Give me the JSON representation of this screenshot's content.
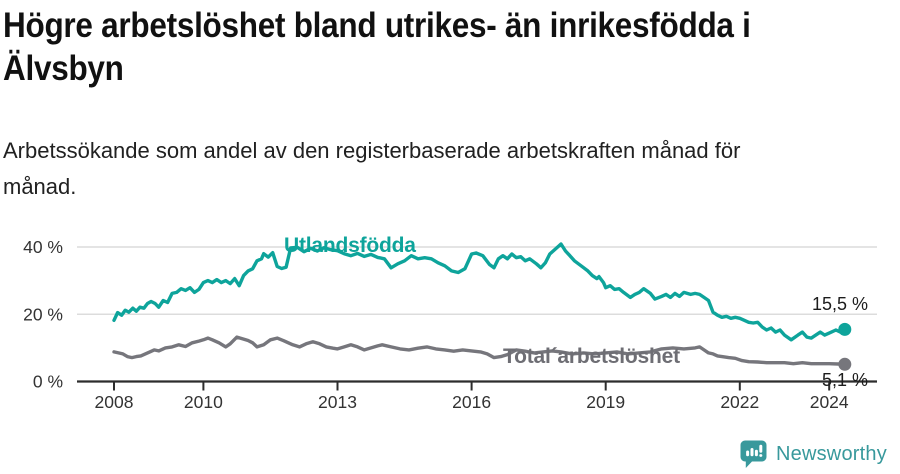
{
  "header": {
    "title_lines": [
      "Högre arbetslöshet bland utrikes- än inrikesfödda i",
      "Älvsbyn"
    ],
    "subtitle_lines": [
      "Arbetssökande som andel av den registerbaserade arbetskraften månad för",
      "månad."
    ]
  },
  "footer": {
    "brand": "Newsworthy",
    "brand_color": "#38999c",
    "logo_icon": "bar-chart-speech-bubble-icon"
  },
  "colors": {
    "utlandsfodda": "#0ea49b",
    "total": "#76767c",
    "gridline": "#dcdcdc",
    "axis": "#2d2d2d",
    "axis_text": "#333333",
    "annotation_text": "#1c1c1c"
  },
  "chart_data": {
    "type": "line",
    "title": "Högre arbetslöshet bland utrikes- än inrikesfödda i Älvsbyn",
    "subtitle": "Arbetssökande som andel av den registerbaserade arbetskraften månad för månad.",
    "xlabel": "",
    "ylabel": "",
    "x_axis": {
      "ticks": [
        2008,
        2010,
        2013,
        2016,
        2019,
        2022,
        2024
      ],
      "range": [
        2007.2,
        2025.1
      ]
    },
    "y_axis": {
      "ticks": [
        0,
        20,
        40
      ],
      "tick_suffix": " %",
      "range": [
        0,
        44
      ]
    },
    "grid": "horizontal",
    "legend_position": "inline-labels",
    "series": [
      {
        "key": "utlandsfodda",
        "name": "Utlandsfödda",
        "color": "#0ea49b",
        "end_value": 15.5,
        "end_label": "15,5 %",
        "points": [
          [
            2008.0,
            18.2
          ],
          [
            2008.08,
            20.5
          ],
          [
            2008.17,
            19.7
          ],
          [
            2008.25,
            21.2
          ],
          [
            2008.33,
            20.6
          ],
          [
            2008.42,
            21.8
          ],
          [
            2008.5,
            20.9
          ],
          [
            2008.58,
            22.1
          ],
          [
            2008.67,
            21.8
          ],
          [
            2008.75,
            23.2
          ],
          [
            2008.83,
            23.8
          ],
          [
            2008.92,
            23.2
          ],
          [
            2009.0,
            22.1
          ],
          [
            2009.1,
            24.1
          ],
          [
            2009.2,
            23.5
          ],
          [
            2009.3,
            26.2
          ],
          [
            2009.4,
            26.5
          ],
          [
            2009.5,
            27.6
          ],
          [
            2009.6,
            27.1
          ],
          [
            2009.7,
            27.9
          ],
          [
            2009.8,
            26.5
          ],
          [
            2009.9,
            27.4
          ],
          [
            2010.0,
            29.4
          ],
          [
            2010.1,
            30.0
          ],
          [
            2010.2,
            29.4
          ],
          [
            2010.3,
            30.3
          ],
          [
            2010.4,
            29.4
          ],
          [
            2010.5,
            30.0
          ],
          [
            2010.6,
            29.1
          ],
          [
            2010.7,
            30.6
          ],
          [
            2010.8,
            28.5
          ],
          [
            2010.9,
            31.5
          ],
          [
            2011.0,
            32.9
          ],
          [
            2011.1,
            33.5
          ],
          [
            2011.2,
            35.9
          ],
          [
            2011.3,
            36.5
          ],
          [
            2011.35,
            38.0
          ],
          [
            2011.45,
            37.0
          ],
          [
            2011.55,
            38.3
          ],
          [
            2011.65,
            34.2
          ],
          [
            2011.75,
            33.6
          ],
          [
            2011.85,
            34.0
          ],
          [
            2011.95,
            39.7
          ],
          [
            2012.1,
            39.9
          ],
          [
            2012.25,
            38.6
          ],
          [
            2012.4,
            39.6
          ],
          [
            2012.55,
            38.8
          ],
          [
            2012.7,
            39.8
          ],
          [
            2012.85,
            39.2
          ],
          [
            2013.0,
            38.9
          ],
          [
            2013.15,
            38.0
          ],
          [
            2013.3,
            37.4
          ],
          [
            2013.45,
            38.1
          ],
          [
            2013.6,
            37.2
          ],
          [
            2013.75,
            37.8
          ],
          [
            2013.9,
            36.9
          ],
          [
            2014.05,
            36.5
          ],
          [
            2014.2,
            33.8
          ],
          [
            2014.35,
            35.0
          ],
          [
            2014.5,
            35.9
          ],
          [
            2014.65,
            37.4
          ],
          [
            2014.8,
            36.5
          ],
          [
            2014.95,
            36.8
          ],
          [
            2015.1,
            36.5
          ],
          [
            2015.25,
            35.3
          ],
          [
            2015.4,
            34.4
          ],
          [
            2015.55,
            32.9
          ],
          [
            2015.7,
            32.4
          ],
          [
            2015.85,
            33.5
          ],
          [
            2016.0,
            37.9
          ],
          [
            2016.1,
            38.2
          ],
          [
            2016.25,
            37.4
          ],
          [
            2016.4,
            34.8
          ],
          [
            2016.5,
            33.8
          ],
          [
            2016.6,
            36.5
          ],
          [
            2016.7,
            37.4
          ],
          [
            2016.8,
            36.5
          ],
          [
            2016.9,
            37.9
          ],
          [
            2017.0,
            36.8
          ],
          [
            2017.1,
            37.1
          ],
          [
            2017.2,
            35.9
          ],
          [
            2017.3,
            36.5
          ],
          [
            2017.45,
            35.0
          ],
          [
            2017.55,
            33.8
          ],
          [
            2017.65,
            35.3
          ],
          [
            2017.75,
            37.9
          ],
          [
            2017.85,
            39.1
          ],
          [
            2017.95,
            40.3
          ],
          [
            2018.0,
            40.9
          ],
          [
            2018.1,
            38.8
          ],
          [
            2018.2,
            37.4
          ],
          [
            2018.3,
            35.9
          ],
          [
            2018.45,
            34.4
          ],
          [
            2018.6,
            32.9
          ],
          [
            2018.7,
            31.5
          ],
          [
            2018.8,
            30.6
          ],
          [
            2018.85,
            31.2
          ],
          [
            2018.95,
            29.4
          ],
          [
            2019.0,
            27.9
          ],
          [
            2019.1,
            28.5
          ],
          [
            2019.2,
            27.4
          ],
          [
            2019.3,
            27.6
          ],
          [
            2019.4,
            26.5
          ],
          [
            2019.55,
            25.0
          ],
          [
            2019.65,
            25.9
          ],
          [
            2019.75,
            26.5
          ],
          [
            2019.85,
            27.6
          ],
          [
            2020.0,
            26.2
          ],
          [
            2020.1,
            24.5
          ],
          [
            2020.25,
            25.3
          ],
          [
            2020.35,
            25.9
          ],
          [
            2020.45,
            25.0
          ],
          [
            2020.55,
            26.2
          ],
          [
            2020.65,
            25.3
          ],
          [
            2020.75,
            26.5
          ],
          [
            2020.9,
            25.9
          ],
          [
            2021.0,
            26.2
          ],
          [
            2021.1,
            25.9
          ],
          [
            2021.2,
            25.0
          ],
          [
            2021.3,
            24.1
          ],
          [
            2021.4,
            20.6
          ],
          [
            2021.5,
            19.7
          ],
          [
            2021.6,
            19.1
          ],
          [
            2021.7,
            19.4
          ],
          [
            2021.8,
            18.8
          ],
          [
            2021.9,
            19.1
          ],
          [
            2022.0,
            18.8
          ],
          [
            2022.1,
            18.2
          ],
          [
            2022.2,
            17.6
          ],
          [
            2022.3,
            17.4
          ],
          [
            2022.4,
            17.6
          ],
          [
            2022.5,
            16.2
          ],
          [
            2022.6,
            15.3
          ],
          [
            2022.7,
            15.9
          ],
          [
            2022.8,
            14.7
          ],
          [
            2022.9,
            15.3
          ],
          [
            2023.0,
            13.8
          ],
          [
            2023.15,
            12.4
          ],
          [
            2023.3,
            13.8
          ],
          [
            2023.4,
            14.7
          ],
          [
            2023.5,
            13.2
          ],
          [
            2023.6,
            12.9
          ],
          [
            2023.7,
            13.8
          ],
          [
            2023.8,
            14.7
          ],
          [
            2023.9,
            13.8
          ],
          [
            2024.0,
            14.4
          ],
          [
            2024.15,
            15.3
          ],
          [
            2024.25,
            14.7
          ],
          [
            2024.35,
            15.5
          ]
        ]
      },
      {
        "key": "total-arbetsloshet",
        "name": "Total´arbetslöshet",
        "color": "#76767c",
        "end_value": 5.1,
        "end_label": "5,1 %",
        "points": [
          [
            2008.0,
            8.8
          ],
          [
            2008.1,
            8.5
          ],
          [
            2008.2,
            8.2
          ],
          [
            2008.3,
            7.4
          ],
          [
            2008.4,
            7.1
          ],
          [
            2008.5,
            7.4
          ],
          [
            2008.6,
            7.6
          ],
          [
            2008.7,
            8.2
          ],
          [
            2008.8,
            8.8
          ],
          [
            2008.9,
            9.4
          ],
          [
            2009.0,
            9.1
          ],
          [
            2009.15,
            10.0
          ],
          [
            2009.3,
            10.3
          ],
          [
            2009.45,
            10.9
          ],
          [
            2009.6,
            10.4
          ],
          [
            2009.75,
            11.5
          ],
          [
            2009.9,
            12.0
          ],
          [
            2010.0,
            12.4
          ],
          [
            2010.1,
            12.9
          ],
          [
            2010.2,
            12.4
          ],
          [
            2010.35,
            11.5
          ],
          [
            2010.5,
            10.3
          ],
          [
            2010.6,
            11.2
          ],
          [
            2010.75,
            13.2
          ],
          [
            2010.9,
            12.6
          ],
          [
            2011.0,
            12.2
          ],
          [
            2011.1,
            11.5
          ],
          [
            2011.2,
            10.3
          ],
          [
            2011.35,
            10.9
          ],
          [
            2011.5,
            12.4
          ],
          [
            2011.65,
            12.9
          ],
          [
            2011.8,
            12.1
          ],
          [
            2011.9,
            11.5
          ],
          [
            2012.0,
            10.9
          ],
          [
            2012.15,
            10.3
          ],
          [
            2012.3,
            11.2
          ],
          [
            2012.45,
            11.8
          ],
          [
            2012.6,
            11.2
          ],
          [
            2012.75,
            10.3
          ],
          [
            2012.9,
            9.9
          ],
          [
            2013.0,
            9.7
          ],
          [
            2013.15,
            10.3
          ],
          [
            2013.3,
            10.9
          ],
          [
            2013.45,
            10.3
          ],
          [
            2013.6,
            9.4
          ],
          [
            2013.75,
            10.0
          ],
          [
            2013.9,
            10.6
          ],
          [
            2014.0,
            10.9
          ],
          [
            2014.2,
            10.3
          ],
          [
            2014.4,
            9.7
          ],
          [
            2014.6,
            9.4
          ],
          [
            2014.8,
            9.9
          ],
          [
            2015.0,
            10.3
          ],
          [
            2015.2,
            9.7
          ],
          [
            2015.4,
            9.4
          ],
          [
            2015.6,
            9.0
          ],
          [
            2015.8,
            9.4
          ],
          [
            2016.0,
            9.1
          ],
          [
            2016.2,
            8.8
          ],
          [
            2016.35,
            8.2
          ],
          [
            2016.5,
            7.1
          ],
          [
            2016.65,
            7.4
          ],
          [
            2016.8,
            8.0
          ],
          [
            2017.0,
            9.4
          ],
          [
            2017.2,
            9.0
          ],
          [
            2017.4,
            8.5
          ],
          [
            2017.6,
            8.8
          ],
          [
            2017.8,
            9.1
          ],
          [
            2018.0,
            8.8
          ],
          [
            2018.25,
            8.2
          ],
          [
            2018.5,
            8.5
          ],
          [
            2018.75,
            8.2
          ],
          [
            2019.0,
            8.5
          ],
          [
            2019.25,
            8.8
          ],
          [
            2019.5,
            8.2
          ],
          [
            2019.75,
            8.5
          ],
          [
            2020.0,
            8.8
          ],
          [
            2020.25,
            9.7
          ],
          [
            2020.5,
            10.0
          ],
          [
            2020.75,
            9.7
          ],
          [
            2021.0,
            10.0
          ],
          [
            2021.1,
            10.3
          ],
          [
            2021.2,
            9.4
          ],
          [
            2021.3,
            8.5
          ],
          [
            2021.4,
            8.2
          ],
          [
            2021.5,
            7.6
          ],
          [
            2021.6,
            7.4
          ],
          [
            2021.75,
            7.1
          ],
          [
            2021.9,
            6.9
          ],
          [
            2022.05,
            6.2
          ],
          [
            2022.2,
            5.9
          ],
          [
            2022.4,
            5.8
          ],
          [
            2022.6,
            5.6
          ],
          [
            2022.8,
            5.6
          ],
          [
            2023.0,
            5.6
          ],
          [
            2023.2,
            5.3
          ],
          [
            2023.4,
            5.6
          ],
          [
            2023.6,
            5.3
          ],
          [
            2023.8,
            5.3
          ],
          [
            2024.0,
            5.3
          ],
          [
            2024.2,
            5.2
          ],
          [
            2024.35,
            5.1
          ]
        ]
      }
    ]
  }
}
